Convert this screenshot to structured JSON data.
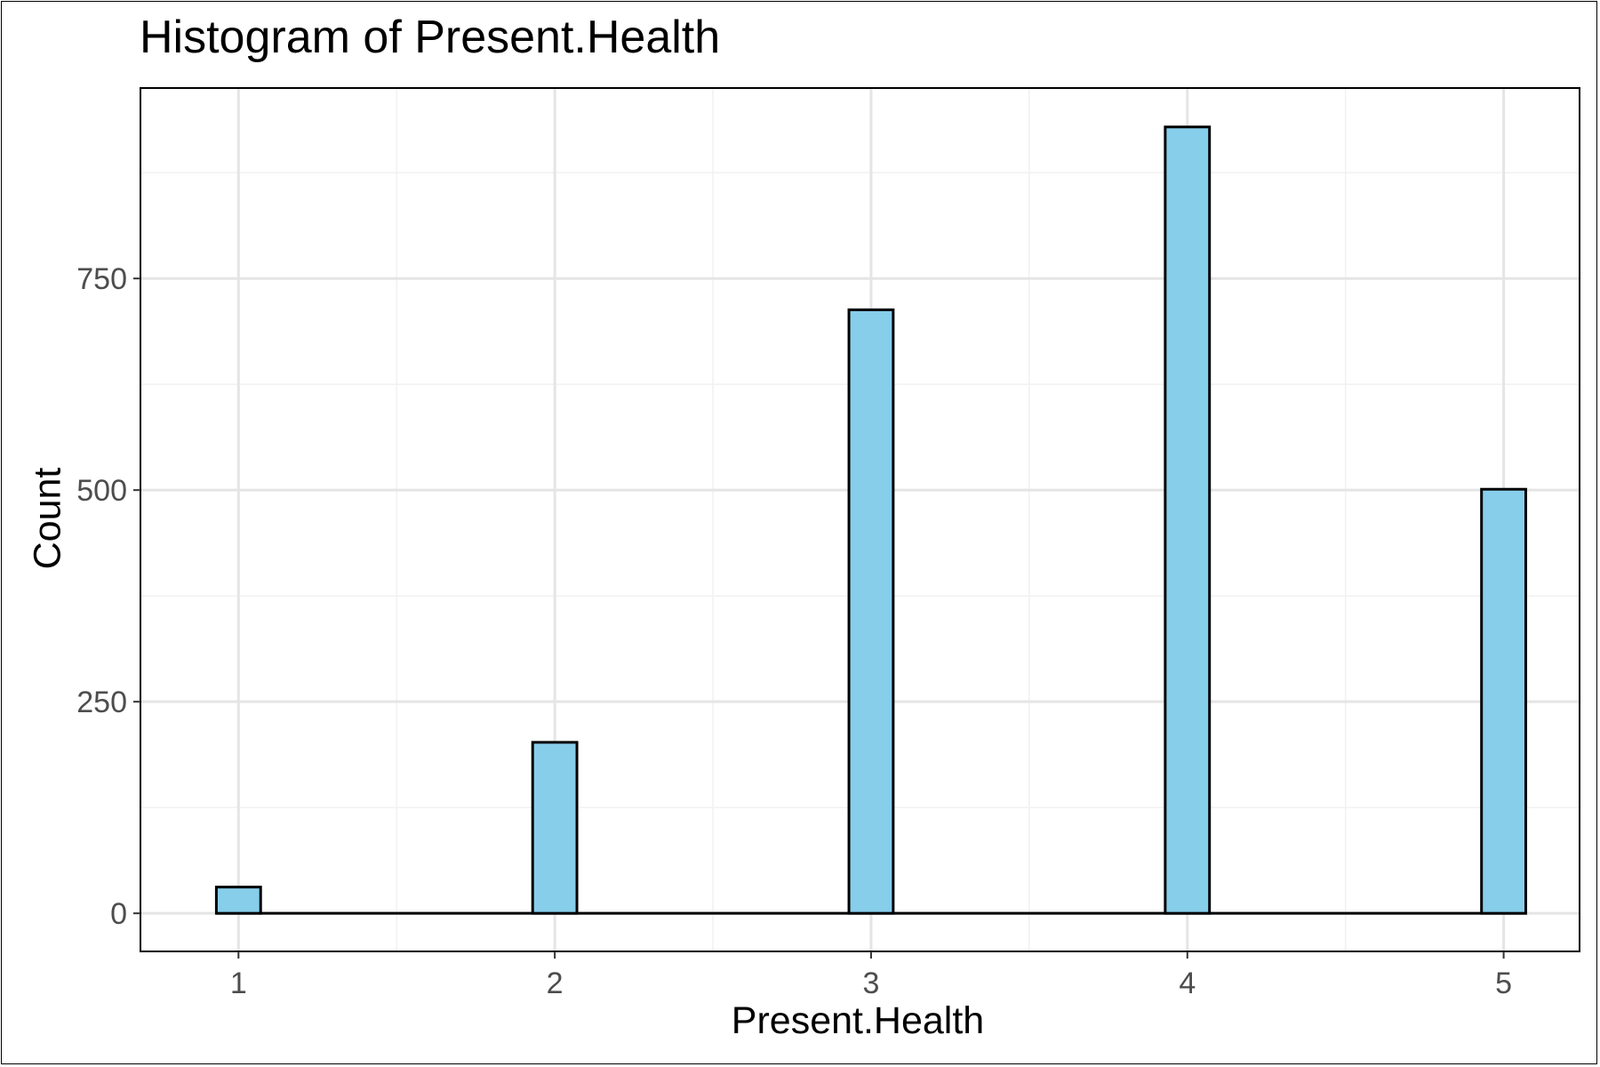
{
  "chart_data": {
    "type": "bar",
    "title": "Histogram of Present.Health",
    "xlabel": "Present.Health",
    "ylabel": "Count",
    "x_ticks": [
      1,
      2,
      3,
      4,
      5
    ],
    "y_ticks": [
      0,
      250,
      500,
      750
    ],
    "xlim": [
      0.69,
      5.24
    ],
    "ylim": [
      -45,
      975
    ],
    "grid": true,
    "bars": [
      {
        "x": 1,
        "value": 31
      },
      {
        "x": 2,
        "value": 202
      },
      {
        "x": 3,
        "value": 713
      },
      {
        "x": 4,
        "value": 929
      },
      {
        "x": 5,
        "value": 501
      }
    ],
    "bar_half_width": 0.07,
    "bin_range": [
      0.93,
      5.07
    ],
    "colors": {
      "fill": "#87CEEB",
      "stroke": "#000000",
      "grid_major": "#E5E5E5",
      "grid_minor": "#F2F2F2",
      "tick_text": "#4D4D4D"
    }
  }
}
